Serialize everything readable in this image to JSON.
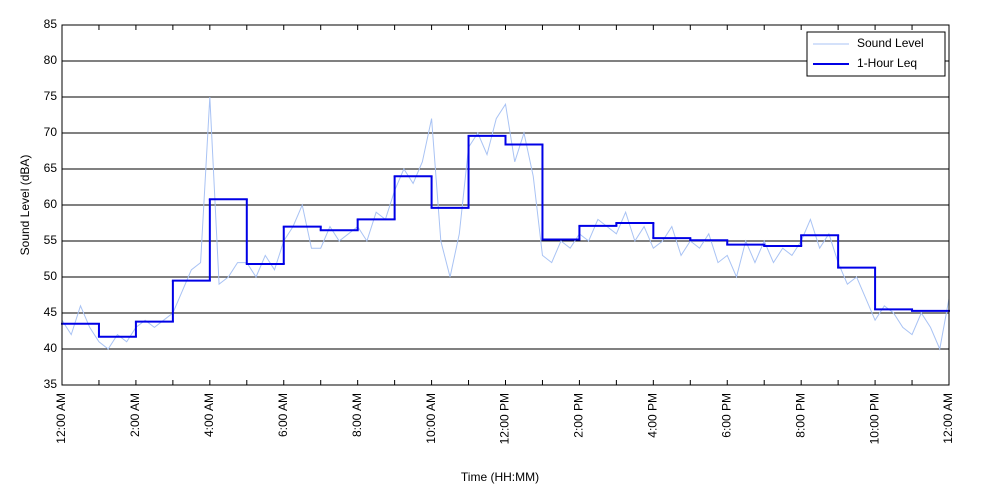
{
  "chart_data": {
    "type": "line",
    "xlabel": "Time (HH:MM)",
    "ylabel": "Sound Level (dBA)",
    "xlim": [
      0,
      24
    ],
    "xticks": [
      {
        "value": 0,
        "label": "12:00 AM"
      },
      {
        "value": 2,
        "label": "2:00 AM"
      },
      {
        "value": 4,
        "label": "4:00 AM"
      },
      {
        "value": 6,
        "label": "6:00 AM"
      },
      {
        "value": 8,
        "label": "8:00 AM"
      },
      {
        "value": 10,
        "label": "10:00 AM"
      },
      {
        "value": 12,
        "label": "12:00 PM"
      },
      {
        "value": 14,
        "label": "2:00 PM"
      },
      {
        "value": 16,
        "label": "4:00 PM"
      },
      {
        "value": 18,
        "label": "6:00 PM"
      },
      {
        "value": 20,
        "label": "8:00 PM"
      },
      {
        "value": 22,
        "label": "10:00 PM"
      },
      {
        "value": 24,
        "label": "12:00 AM"
      }
    ],
    "xminorticks": [
      1,
      3,
      5,
      7,
      9,
      11,
      13,
      15,
      17,
      19,
      21,
      23
    ],
    "ylim": [
      35,
      85
    ],
    "yticks": [
      35,
      40,
      45,
      50,
      55,
      60,
      65,
      70,
      75,
      80,
      85
    ],
    "grid": true,
    "legend": "upper right",
    "series": [
      {
        "name": "Sound Level",
        "color": "#a9c3f4",
        "step": false,
        "x": [
          0,
          0.25,
          0.5,
          0.75,
          1,
          1.25,
          1.5,
          1.75,
          2,
          2.25,
          2.5,
          2.75,
          3,
          3.25,
          3.5,
          3.75,
          4,
          4.25,
          4.5,
          4.75,
          5,
          5.25,
          5.5,
          5.75,
          6,
          6.25,
          6.5,
          6.75,
          7,
          7.25,
          7.5,
          7.75,
          8,
          8.25,
          8.5,
          8.75,
          9,
          9.25,
          9.5,
          9.75,
          10,
          10.25,
          10.5,
          10.75,
          11,
          11.25,
          11.5,
          11.75,
          12,
          12.25,
          12.5,
          12.75,
          13,
          13.25,
          13.5,
          13.75,
          14,
          14.25,
          14.5,
          14.75,
          15,
          15.25,
          15.5,
          15.75,
          16,
          16.25,
          16.5,
          16.75,
          17,
          17.25,
          17.5,
          17.75,
          18,
          18.25,
          18.5,
          18.75,
          19,
          19.25,
          19.5,
          19.75,
          20,
          20.25,
          20.5,
          20.75,
          21,
          21.25,
          21.5,
          21.75,
          22,
          22.25,
          22.5,
          22.75,
          23,
          23.25,
          23.5,
          23.75,
          24
        ],
        "values": [
          44,
          42,
          46,
          43,
          41,
          40,
          42,
          41,
          43,
          44,
          43,
          44,
          45,
          48,
          51,
          52,
          75,
          49,
          50,
          52,
          52,
          50,
          53,
          51,
          55,
          57,
          60,
          54,
          54,
          57,
          55,
          56,
          57,
          55,
          59,
          58,
          62,
          65,
          63,
          66,
          72,
          55,
          50,
          56,
          68,
          70,
          67,
          72,
          74,
          66,
          70,
          64,
          53,
          52,
          55,
          54,
          56,
          55,
          58,
          57,
          56,
          59,
          55,
          57,
          54,
          55,
          57,
          53,
          55,
          54,
          56,
          52,
          53,
          50,
          55,
          52,
          55,
          52,
          54,
          53,
          55,
          58,
          54,
          56,
          52,
          49,
          50,
          47,
          44,
          46,
          45,
          43,
          42,
          45,
          43,
          40,
          47
        ]
      },
      {
        "name": "1-Hour Leq",
        "color": "#0000e6",
        "step": true,
        "x": [
          0,
          1,
          2,
          3,
          4,
          5,
          6,
          7,
          8,
          9,
          10,
          11,
          12,
          13,
          14,
          15,
          16,
          17,
          18,
          19,
          20,
          21,
          22,
          23
        ],
        "values": [
          43.5,
          41.7,
          43.8,
          49.5,
          60.8,
          51.8,
          57,
          56.5,
          58,
          64,
          59.6,
          69.6,
          68.4,
          55.2,
          57.1,
          57.5,
          55.4,
          55.1,
          54.5,
          54.3,
          55.8,
          51.3,
          45.5,
          45.3
        ]
      }
    ]
  }
}
